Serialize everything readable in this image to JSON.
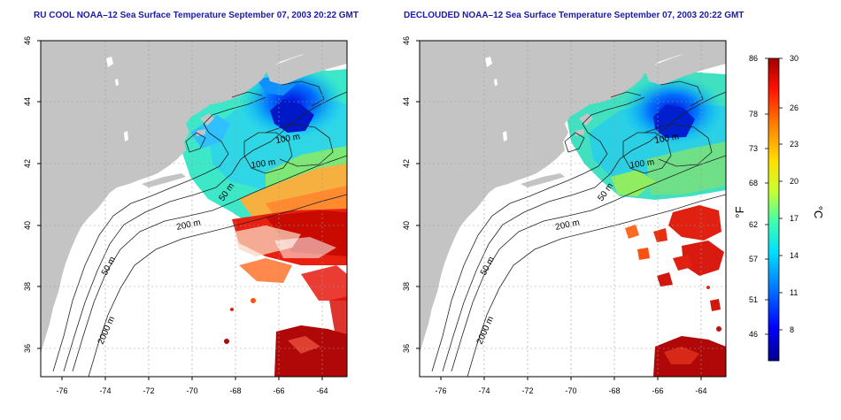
{
  "panels": [
    {
      "id": "left",
      "title": "RU COOL NOAA–12 Sea Surface Temperature September 07, 2003 20:22 GMT",
      "contour_labels": [
        "100 m",
        "100 m",
        "50 m",
        "200 m",
        "50 m",
        "2000 m"
      ]
    },
    {
      "id": "right",
      "title": "DECLOUDED NOAA–12 Sea Surface Temperature September 07, 2003 20:22 GMT",
      "contour_labels": [
        "100 m",
        "100 m",
        "50 m",
        "200 m",
        "50 m",
        "2000 m"
      ]
    }
  ],
  "axes": {
    "longitude_ticks": [
      "-76",
      "-74",
      "-72",
      "-70",
      "-68",
      "-66",
      "-64"
    ],
    "latitude_ticks": [
      "46",
      "44",
      "42",
      "40",
      "38",
      "36"
    ]
  },
  "colorbar": {
    "fahrenheit_ticks": [
      "86",
      "78",
      "73",
      "68",
      "62",
      "57",
      "51",
      "46"
    ],
    "celsius_ticks": [
      "30",
      "26",
      "23",
      "20",
      "17",
      "14",
      "11",
      "8"
    ],
    "unit_left": "°F",
    "unit_right": "°C",
    "colors": [
      "#00008c",
      "#0000ff",
      "#0080ff",
      "#00e0ff",
      "#40ffb0",
      "#c8ff30",
      "#ffe000",
      "#ff8000",
      "#ff1000",
      "#a00000"
    ]
  },
  "colors": {
    "land": "#c4c4c4",
    "ocean": "#ffffff",
    "title": "#1a1aa8"
  }
}
